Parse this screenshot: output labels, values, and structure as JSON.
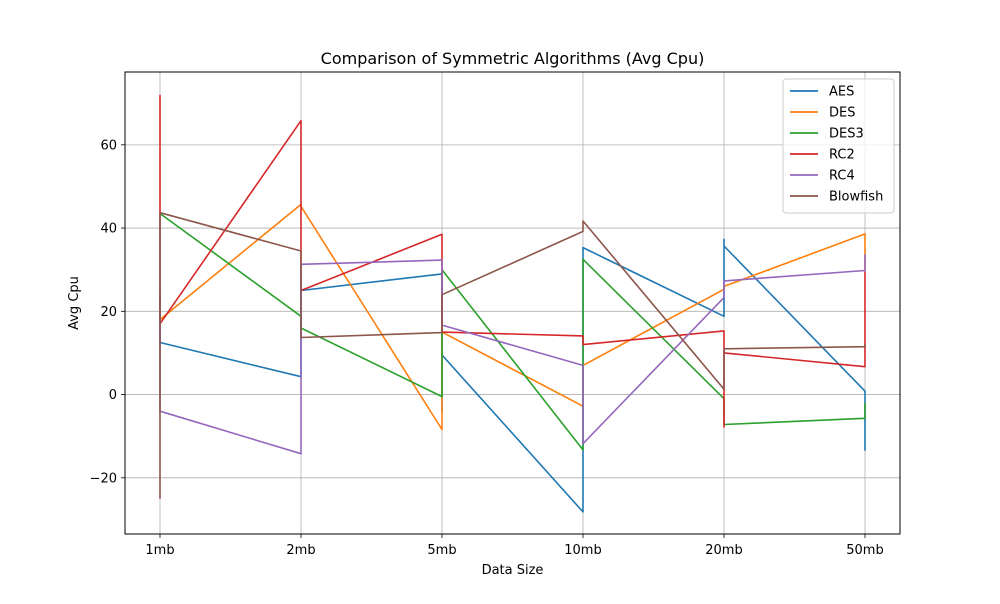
{
  "chart_data": {
    "type": "line",
    "title": "Comparison of Symmetric Algorithms (Avg Cpu)",
    "xlabel": "Data Size",
    "ylabel": "Avg Cpu",
    "categories": [
      "1mb",
      "2mb",
      "5mb",
      "10mb",
      "20mb",
      "50mb"
    ],
    "yticks": [
      -20,
      0,
      20,
      40,
      60
    ],
    "ylim": [
      -33.5,
      77.5
    ],
    "grid": true,
    "legend_position": "top-right",
    "series": [
      {
        "name": "AES",
        "color": "#1f77b4",
        "points": [
          [
            0,
            25
          ],
          [
            0,
            12.5
          ],
          [
            1,
            4.3
          ],
          [
            1,
            25
          ],
          [
            2,
            29
          ],
          [
            2,
            -4.2
          ],
          [
            2,
            9.5
          ],
          [
            3,
            -28.2
          ],
          [
            3,
            35.3
          ],
          [
            4,
            18.8
          ],
          [
            4,
            37.3
          ],
          [
            4,
            35.7
          ],
          [
            5,
            0.8
          ],
          [
            5,
            -13.5
          ]
        ]
      },
      {
        "name": "DES",
        "color": "#ff7f0e",
        "points": [
          [
            0,
            24
          ],
          [
            0,
            18
          ],
          [
            1,
            45.7
          ],
          [
            1,
            45.2
          ],
          [
            2,
            -8.4
          ],
          [
            2,
            15
          ],
          [
            3,
            -2.8
          ],
          [
            3,
            7
          ],
          [
            4,
            25.3
          ],
          [
            4,
            26
          ],
          [
            5,
            38.6
          ],
          [
            5,
            30
          ]
        ]
      },
      {
        "name": "DES3",
        "color": "#2ca02c",
        "points": [
          [
            0,
            43.5
          ],
          [
            1,
            18.8
          ],
          [
            1,
            16
          ],
          [
            2,
            -0.5
          ],
          [
            2,
            30
          ],
          [
            3,
            -13.3
          ],
          [
            3,
            32.5
          ],
          [
            4,
            -1
          ],
          [
            4,
            -7.2
          ],
          [
            5,
            -5.7
          ],
          [
            5,
            -2
          ]
        ]
      },
      {
        "name": "RC2",
        "color": "#d62728",
        "points": [
          [
            0,
            72
          ],
          [
            0,
            17
          ],
          [
            1,
            65.8
          ],
          [
            1,
            25
          ],
          [
            2,
            38.5
          ],
          [
            2,
            15
          ],
          [
            3,
            14.1
          ],
          [
            3,
            12
          ],
          [
            4,
            15.3
          ],
          [
            4,
            -7.8
          ],
          [
            4,
            10
          ],
          [
            5,
            6.7
          ],
          [
            5,
            29.5
          ],
          [
            5,
            26.7
          ]
        ]
      },
      {
        "name": "RC4",
        "color": "#9467bd",
        "points": [
          [
            0,
            26
          ],
          [
            0,
            -4
          ],
          [
            1,
            -14.2
          ],
          [
            1,
            31.3
          ],
          [
            2,
            32.3
          ],
          [
            2,
            16.7
          ],
          [
            3,
            7
          ],
          [
            3,
            -11.8
          ],
          [
            4,
            23.3
          ],
          [
            4,
            27.3
          ],
          [
            5,
            29.8
          ],
          [
            5,
            33.7
          ]
        ]
      },
      {
        "name": "Blowfish",
        "color": "#8c564b",
        "points": [
          [
            0,
            -25
          ],
          [
            0,
            43.7
          ],
          [
            1,
            34.5
          ],
          [
            1,
            13.7
          ],
          [
            2,
            14.9
          ],
          [
            2,
            24
          ],
          [
            3,
            39.2
          ],
          [
            3,
            41.7
          ],
          [
            4,
            1.3
          ],
          [
            4,
            11
          ],
          [
            5,
            11.5
          ],
          [
            5,
            12
          ]
        ]
      }
    ]
  }
}
